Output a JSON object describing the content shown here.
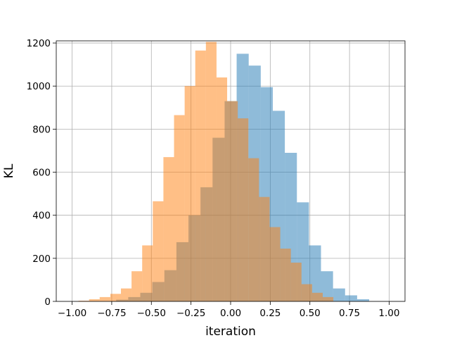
{
  "chart_data": {
    "type": "bar",
    "title": "",
    "xlabel": "iteration",
    "ylabel": "KL",
    "xlim": [
      -1.1,
      1.1
    ],
    "ylim": [
      0,
      1210
    ],
    "grid": true,
    "legend": "none",
    "xticks": [
      -1.0,
      -0.75,
      -0.5,
      -0.25,
      0.0,
      0.25,
      0.5,
      0.75,
      1.0
    ],
    "xtick_labels": [
      "−1.00",
      "−0.75",
      "−0.50",
      "−0.25",
      "0.00",
      "0.25",
      "0.50",
      "0.75",
      "1.00"
    ],
    "yticks": [
      0,
      200,
      400,
      600,
      800,
      1000,
      1200
    ],
    "ytick_labels": [
      "0",
      "200",
      "400",
      "600",
      "800",
      "1000",
      "1200"
    ],
    "series": [
      {
        "color": "#1f77b4",
        "opacity": 0.5,
        "bin_edges": [
          -0.722,
          -0.646,
          -0.57,
          -0.494,
          -0.418,
          -0.342,
          -0.266,
          -0.19,
          -0.114,
          -0.038,
          0.038,
          0.114,
          0.19,
          0.266,
          0.342,
          0.418,
          0.494,
          0.57,
          0.646,
          0.722,
          0.798,
          0.874
        ],
        "counts": [
          8,
          20,
          40,
          90,
          145,
          275,
          400,
          530,
          760,
          930,
          1150,
          1095,
          995,
          885,
          690,
          460,
          260,
          140,
          60,
          28,
          10
        ]
      },
      {
        "color": "#ff7f0e",
        "opacity": 0.5,
        "bin_edges": [
          -0.96,
          -0.893,
          -0.826,
          -0.759,
          -0.692,
          -0.625,
          -0.558,
          -0.491,
          -0.424,
          -0.357,
          -0.29,
          -0.223,
          -0.156,
          -0.089,
          -0.022,
          0.045,
          0.112,
          0.179,
          0.246,
          0.313,
          0.38,
          0.447,
          0.514,
          0.581,
          0.648
        ],
        "counts": [
          3,
          10,
          20,
          35,
          60,
          140,
          260,
          465,
          670,
          865,
          1000,
          1165,
          1205,
          1040,
          930,
          850,
          665,
          485,
          345,
          245,
          180,
          80,
          40,
          20
        ]
      }
    ]
  }
}
